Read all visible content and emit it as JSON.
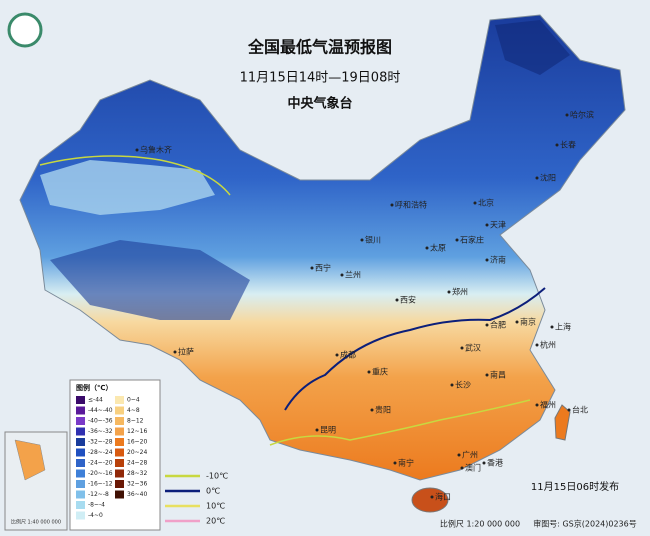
{
  "header": {
    "title": "全国最低气温预报图",
    "subtitle": "11月15日14时—19日08时",
    "issuer": "中央气象台"
  },
  "cities": [
    "乌鲁木齐",
    "哈尔滨",
    "长春",
    "沈阳",
    "呼和浩特",
    "北京",
    "天津",
    "石家庄",
    "太原",
    "银川",
    "西宁",
    "兰州",
    "济南",
    "郑州",
    "西安",
    "合肥",
    "南京",
    "上海",
    "杭州",
    "武汉",
    "成都",
    "重庆",
    "长沙",
    "南昌",
    "拉萨",
    "贵阳",
    "昆明",
    "福州",
    "台北",
    "南宁",
    "广州",
    "香港",
    "澳门",
    "海口"
  ],
  "legend": {
    "title": "图例（℃）",
    "cold": [
      "≤-44",
      "-44~-40",
      "-40~-36",
      "-36~-32",
      "-32~-28",
      "-28~-24",
      "-24~-20",
      "-20~-16",
      "-16~-12",
      "-12~-8",
      "-8~-4",
      "-4~0"
    ],
    "warm": [
      "0~4",
      "4~8",
      "8~12",
      "12~16",
      "16~20",
      "20~24",
      "24~28",
      "28~32",
      "32~36",
      "36~40"
    ],
    "lines": [
      "-10℃",
      "0℃",
      "10℃",
      "20℃"
    ]
  },
  "inset": {
    "scale": "比例尺 1:40 000 000"
  },
  "footer": {
    "issued": "11月15日06时发布",
    "scale": "比例尺 1:20 000 000",
    "approval": "审图号: GS京(2024)0236号"
  }
}
